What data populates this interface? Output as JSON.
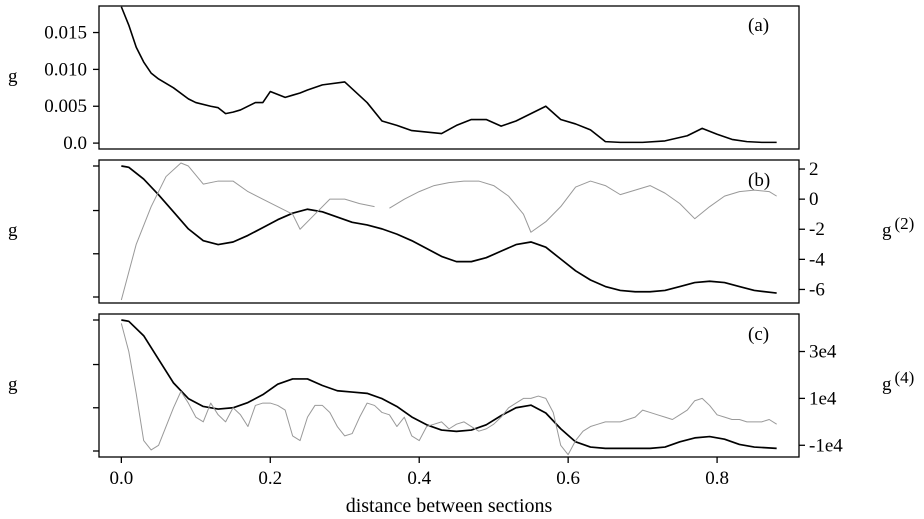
{
  "chart_data": [
    {
      "type": "line",
      "panel_label": "(a)",
      "ylabel": "g",
      "xlim": [
        -0.03,
        0.91
      ],
      "ylim": [
        -0.0008,
        0.0186
      ],
      "yticks": [
        0.0,
        0.005,
        0.01,
        0.015
      ],
      "ytick_labels": [
        "0.0",
        "0.005",
        "0.010",
        "0.015"
      ],
      "series": [
        {
          "color": "#000000",
          "x": [
            0.0,
            0.01,
            0.02,
            0.03,
            0.04,
            0.05,
            0.07,
            0.09,
            0.1,
            0.12,
            0.13,
            0.14,
            0.15,
            0.16,
            0.18,
            0.19,
            0.2,
            0.22,
            0.23,
            0.24,
            0.25,
            0.27,
            0.3,
            0.33,
            0.35,
            0.37,
            0.39,
            0.43,
            0.45,
            0.47,
            0.49,
            0.51,
            0.53,
            0.55,
            0.57,
            0.59,
            0.61,
            0.63,
            0.65,
            0.67,
            0.7,
            0.73,
            0.76,
            0.78,
            0.8,
            0.82,
            0.84,
            0.86,
            0.88
          ],
          "y": [
            0.0185,
            0.016,
            0.013,
            0.011,
            0.0095,
            0.0087,
            0.0075,
            0.006,
            0.0055,
            0.005,
            0.0048,
            0.004,
            0.0042,
            0.0045,
            0.0055,
            0.0055,
            0.007,
            0.0062,
            0.0065,
            0.0068,
            0.0072,
            0.0079,
            0.0083,
            0.0055,
            0.003,
            0.0024,
            0.0017,
            0.0013,
            0.0024,
            0.0032,
            0.0032,
            0.0023,
            0.003,
            0.004,
            0.005,
            0.0032,
            0.0026,
            0.0018,
            0.0002,
            0.0001,
            0.0001,
            0.0003,
            0.001,
            0.002,
            0.0012,
            0.0005,
            0.0002,
            0.0001,
            0.0001
          ]
        }
      ]
    },
    {
      "type": "line",
      "panel_label": "(b)",
      "ylabel": "g",
      "ylabel_right": "g",
      "ylabel_right_superscript": "(2)",
      "xlim": [
        -0.03,
        0.91
      ],
      "ylim_right": [
        -6.9,
        2.6
      ],
      "yticks_right": [
        2,
        0,
        -2,
        -4,
        -6
      ],
      "ytick_labels_right": [
        "2",
        "0",
        "-2",
        "-4",
        "-6"
      ],
      "series": [
        {
          "color": "#000000",
          "axis": "left",
          "x": [
            0.0,
            0.01,
            0.03,
            0.05,
            0.07,
            0.09,
            0.11,
            0.13,
            0.15,
            0.17,
            0.19,
            0.21,
            0.23,
            0.25,
            0.27,
            0.29,
            0.31,
            0.33,
            0.35,
            0.37,
            0.39,
            0.41,
            0.43,
            0.45,
            0.47,
            0.49,
            0.51,
            0.53,
            0.55,
            0.57,
            0.59,
            0.61,
            0.63,
            0.65,
            0.67,
            0.69,
            0.71,
            0.73,
            0.75,
            0.77,
            0.79,
            0.81,
            0.83,
            0.85,
            0.88
          ],
          "y": [
            1.0,
            0.99,
            0.9,
            0.78,
            0.65,
            0.52,
            0.43,
            0.4,
            0.42,
            0.47,
            0.53,
            0.59,
            0.64,
            0.67,
            0.65,
            0.61,
            0.57,
            0.55,
            0.52,
            0.48,
            0.43,
            0.37,
            0.31,
            0.27,
            0.27,
            0.3,
            0.35,
            0.4,
            0.42,
            0.38,
            0.29,
            0.2,
            0.13,
            0.08,
            0.05,
            0.04,
            0.04,
            0.05,
            0.08,
            0.11,
            0.12,
            0.11,
            0.08,
            0.05,
            0.03
          ]
        },
        {
          "color": "#999999",
          "axis": "right",
          "segments": [
            {
              "x": [
                0.0,
                0.02,
                0.04,
                0.06,
                0.08,
                0.09,
                0.11,
                0.13,
                0.15,
                0.17,
                0.19,
                0.21,
                0.23,
                0.24,
                0.26,
                0.28,
                0.3,
                0.32,
                0.34
              ],
              "y": [
                -6.7,
                -3.0,
                -0.5,
                1.5,
                2.4,
                2.2,
                1.0,
                1.2,
                1.2,
                0.5,
                0.0,
                -0.5,
                -1.0,
                -2.0,
                -1.0,
                0.0,
                0.0,
                -0.3,
                -0.5
              ]
            },
            {
              "x": [
                0.36,
                0.38,
                0.4,
                0.42,
                0.44,
                0.46,
                0.48,
                0.5,
                0.52,
                0.54,
                0.55,
                0.57,
                0.59,
                0.61,
                0.63,
                0.65,
                0.67,
                0.69,
                0.71,
                0.73,
                0.75,
                0.77,
                0.79,
                0.81,
                0.83,
                0.85,
                0.87,
                0.88
              ],
              "y": [
                -0.6,
                0.0,
                0.5,
                0.9,
                1.1,
                1.2,
                1.2,
                0.9,
                0.2,
                -1.0,
                -2.2,
                -1.5,
                -0.5,
                0.8,
                1.2,
                0.9,
                0.3,
                0.6,
                0.9,
                0.4,
                -0.3,
                -1.3,
                -0.5,
                0.2,
                0.5,
                0.6,
                0.5,
                0.2
              ]
            }
          ]
        }
      ]
    },
    {
      "type": "line",
      "panel_label": "(c)",
      "ylabel": "g",
      "ylabel_right": "g",
      "ylabel_right_superscript": "(4)",
      "xlim": [
        -0.03,
        0.91
      ],
      "ylim_right": [
        -15000,
        46000
      ],
      "yticks_right": [
        30000,
        10000,
        -10000
      ],
      "ytick_labels_right": [
        "3e4",
        "1e4",
        "-1e4"
      ],
      "series": [
        {
          "color": "#000000",
          "axis": "left",
          "x": [
            0.0,
            0.01,
            0.03,
            0.05,
            0.07,
            0.09,
            0.11,
            0.13,
            0.15,
            0.17,
            0.19,
            0.21,
            0.23,
            0.25,
            0.27,
            0.29,
            0.31,
            0.33,
            0.35,
            0.37,
            0.39,
            0.41,
            0.43,
            0.45,
            0.47,
            0.49,
            0.51,
            0.53,
            0.55,
            0.57,
            0.59,
            0.61,
            0.63,
            0.65,
            0.67,
            0.69,
            0.71,
            0.73,
            0.75,
            0.77,
            0.79,
            0.81,
            0.83,
            0.85,
            0.88
          ],
          "y": [
            1.0,
            0.99,
            0.88,
            0.7,
            0.52,
            0.4,
            0.34,
            0.32,
            0.33,
            0.37,
            0.43,
            0.51,
            0.55,
            0.55,
            0.5,
            0.46,
            0.45,
            0.44,
            0.4,
            0.34,
            0.26,
            0.2,
            0.16,
            0.15,
            0.16,
            0.2,
            0.27,
            0.33,
            0.35,
            0.29,
            0.17,
            0.07,
            0.03,
            0.02,
            0.02,
            0.02,
            0.02,
            0.03,
            0.07,
            0.1,
            0.11,
            0.09,
            0.05,
            0.03,
            0.02
          ]
        },
        {
          "color": "#999999",
          "axis": "right",
          "x": [
            0.0,
            0.01,
            0.02,
            0.03,
            0.04,
            0.05,
            0.06,
            0.07,
            0.08,
            0.09,
            0.1,
            0.11,
            0.12,
            0.13,
            0.14,
            0.15,
            0.16,
            0.17,
            0.18,
            0.19,
            0.2,
            0.21,
            0.22,
            0.23,
            0.24,
            0.25,
            0.26,
            0.27,
            0.28,
            0.29,
            0.3,
            0.31,
            0.32,
            0.33,
            0.34,
            0.35,
            0.36,
            0.37,
            0.38,
            0.39,
            0.4,
            0.41,
            0.42,
            0.43,
            0.44,
            0.45,
            0.46,
            0.47,
            0.48,
            0.49,
            0.5,
            0.51,
            0.52,
            0.53,
            0.54,
            0.55,
            0.56,
            0.57,
            0.58,
            0.59,
            0.6,
            0.61,
            0.62,
            0.63,
            0.64,
            0.65,
            0.66,
            0.67,
            0.68,
            0.69,
            0.7,
            0.71,
            0.72,
            0.73,
            0.74,
            0.75,
            0.76,
            0.77,
            0.78,
            0.79,
            0.8,
            0.81,
            0.82,
            0.83,
            0.84,
            0.85,
            0.86,
            0.87,
            0.88
          ],
          "y": [
            42000,
            30000,
            12000,
            -8000,
            -12000,
            -10000,
            -2000,
            6000,
            13000,
            8000,
            2000,
            0,
            8000,
            3000,
            0,
            6000,
            3000,
            -2000,
            7000,
            8000,
            8000,
            7000,
            5000,
            -6000,
            -8000,
            2000,
            7000,
            7000,
            4000,
            -2000,
            -6000,
            -5000,
            2000,
            8000,
            7000,
            4000,
            3000,
            -2000,
            2000,
            -6000,
            -8000,
            -2000,
            -1000,
            0,
            -3000,
            -1000,
            0,
            -2000,
            -4000,
            -3000,
            -1000,
            2000,
            6000,
            8000,
            10000,
            10000,
            11000,
            10000,
            4000,
            -10000,
            -14000,
            -8000,
            -4000,
            -2000,
            -1000,
            0,
            0,
            0,
            1000,
            2000,
            5000,
            4000,
            3000,
            2000,
            1000,
            3000,
            5000,
            9000,
            10000,
            7000,
            3000,
            2000,
            1000,
            1000,
            0,
            0,
            0,
            1000,
            -1000
          ]
        }
      ]
    }
  ],
  "xaxis": {
    "label": "distance between sections",
    "ticks": [
      0.0,
      0.2,
      0.4,
      0.6,
      0.8
    ],
    "tick_labels": [
      "0.0",
      "0.2",
      "0.4",
      "0.6",
      "0.8"
    ]
  }
}
